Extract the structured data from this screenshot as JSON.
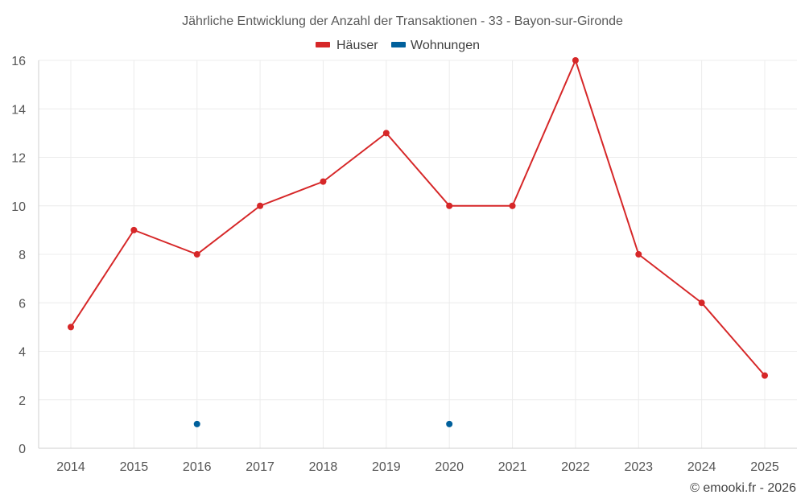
{
  "chart_data": {
    "type": "line",
    "title": "Jährliche Entwicklung der Anzahl der Transaktionen - 33 - Bayon-sur-Gironde",
    "categories": [
      "2014",
      "2015",
      "2016",
      "2017",
      "2018",
      "2019",
      "2020",
      "2021",
      "2022",
      "2023",
      "2024",
      "2025"
    ],
    "series": [
      {
        "name": "Häuser",
        "color": "#d62728",
        "values": [
          5,
          9,
          8,
          10,
          11,
          13,
          10,
          10,
          16,
          8,
          6,
          3
        ]
      },
      {
        "name": "Wohnungen",
        "color": "#00609c",
        "values": [
          null,
          null,
          1,
          null,
          null,
          null,
          1,
          null,
          null,
          null,
          null,
          null
        ]
      }
    ],
    "ylim": [
      0,
      16
    ],
    "yticks": [
      0,
      2,
      4,
      6,
      8,
      10,
      12,
      14,
      16
    ],
    "xlabel": "",
    "ylabel": "",
    "grid": true,
    "legend_position": "top-center"
  },
  "credit": "© emooki.fr - 2026"
}
